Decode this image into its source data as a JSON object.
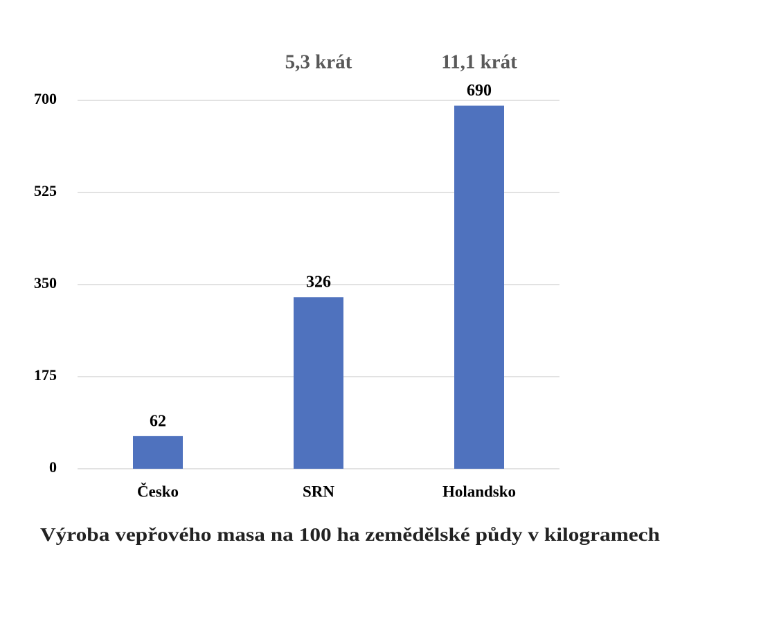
{
  "chart_data": {
    "type": "bar",
    "title": "Výroba vepřového masa na 100 ha zemědělské půdy v kilogramech",
    "categories": [
      "Česko",
      "SRN",
      "Holandsko"
    ],
    "values": [
      62,
      326,
      690
    ],
    "color": "#4f72be",
    "ylim": [
      0,
      700
    ],
    "yticks": [
      0,
      175,
      350,
      525,
      700
    ],
    "grid": true,
    "annotations": [
      {
        "text": "5,3 krát",
        "category": "SRN"
      },
      {
        "text": "11,1 krát",
        "category": "Holandsko"
      }
    ]
  }
}
